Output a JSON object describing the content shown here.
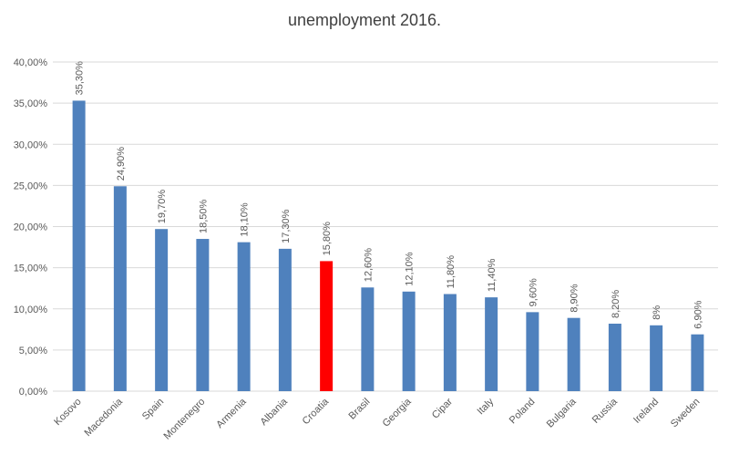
{
  "chart_data": {
    "type": "bar",
    "title": "unemployment 2016.",
    "categories": [
      "Kosovo",
      "Macedonia",
      "Spain",
      "Montenegro",
      "Armenia",
      "Albania",
      "Croatia",
      "Brasil",
      "Georgia",
      "Cipar",
      "Italy",
      "Poland",
      "Bulgaria",
      "Russia",
      "Ireland",
      "Sweden"
    ],
    "values": [
      35.3,
      24.9,
      19.7,
      18.5,
      18.1,
      17.3,
      15.8,
      12.6,
      12.1,
      11.8,
      11.4,
      9.6,
      8.9,
      8.2,
      8,
      6.9
    ],
    "value_labels": [
      "35,30%",
      "24,90%",
      "19,70%",
      "18,50%",
      "18,10%",
      "17,30%",
      "15,80%",
      "12,60%",
      "12,10%",
      "11,80%",
      "11,40%",
      "9,60%",
      "8,90%",
      "8,20%",
      "8%",
      "6,90%"
    ],
    "colors": [
      "#4f81bd",
      "#4f81bd",
      "#4f81bd",
      "#4f81bd",
      "#4f81bd",
      "#4f81bd",
      "#ff0000",
      "#4f81bd",
      "#4f81bd",
      "#4f81bd",
      "#4f81bd",
      "#4f81bd",
      "#4f81bd",
      "#4f81bd",
      "#4f81bd",
      "#4f81bd"
    ],
    "ylim": [
      0,
      40
    ],
    "yticks": [
      {
        "value": 0,
        "label": "0,00%"
      },
      {
        "value": 5,
        "label": "5,00%"
      },
      {
        "value": 10,
        "label": "10,00%"
      },
      {
        "value": 15,
        "label": "15,00%"
      },
      {
        "value": 20,
        "label": "20,00%"
      },
      {
        "value": 25,
        "label": "25,00%"
      },
      {
        "value": 30,
        "label": "30,00%"
      },
      {
        "value": 35,
        "label": "35,00%"
      },
      {
        "value": 40,
        "label": "40,00%"
      }
    ],
    "grid": true
  }
}
